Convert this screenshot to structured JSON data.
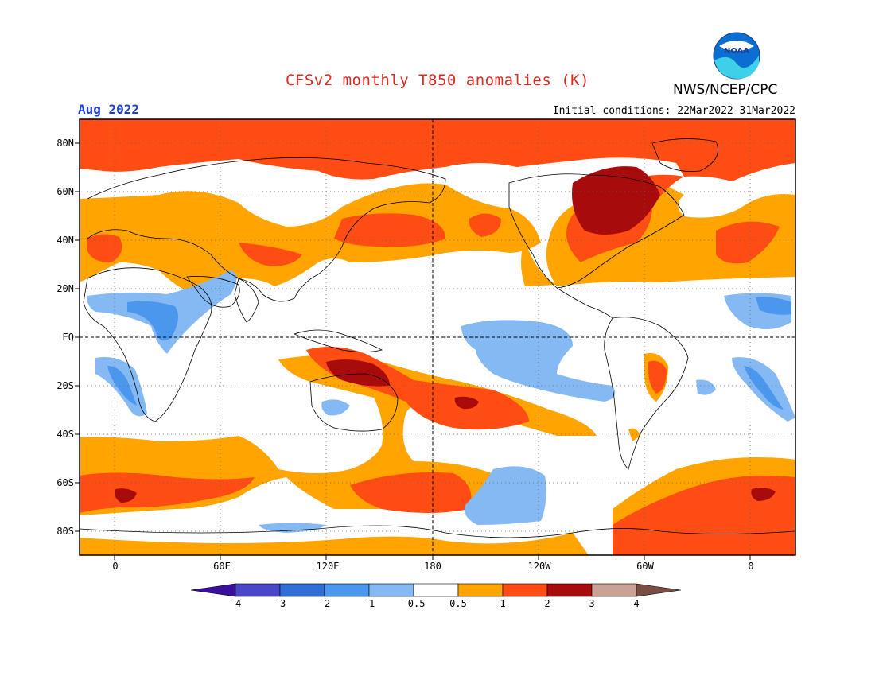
{
  "header": {
    "title": "CFSv2 monthly T850 anomalies (K)",
    "month": "Aug 2022",
    "initial_conditions": "Initial conditions: 22Mar2022-31Mar2022",
    "org": "NWS/NCEP/CPC",
    "logo_text": "NOAA"
  },
  "axes": {
    "lat_labels": [
      "80N",
      "60N",
      "40N",
      "20N",
      "EQ",
      "20S",
      "40S",
      "60S",
      "80S"
    ],
    "lon_labels": [
      "0",
      "60E",
      "120E",
      "180",
      "120W",
      "60W",
      "0"
    ]
  },
  "colorbar": {
    "labels": [
      "-4",
      "-3",
      "-2",
      "-1",
      "-0.5",
      "0.5",
      "1",
      "2",
      "3",
      "4"
    ],
    "colors": [
      "#3a0fa0",
      "#4a46c8",
      "#2f6fd6",
      "#4b97ee",
      "#84b9f4",
      "#ffffff",
      "#ffa400",
      "#ff4d14",
      "#a80b0b",
      "#c9a294",
      "#7a4e42"
    ]
  },
  "palette": {
    "ocean": "#ffffff",
    "orange": "#ffa400",
    "red": "#ff4d14",
    "darkred": "#a80b0b",
    "lightblue": "#84b9f4",
    "blue": "#4b97ee",
    "title_color": "#e0281e",
    "month_color": "#1d3fd8"
  }
}
